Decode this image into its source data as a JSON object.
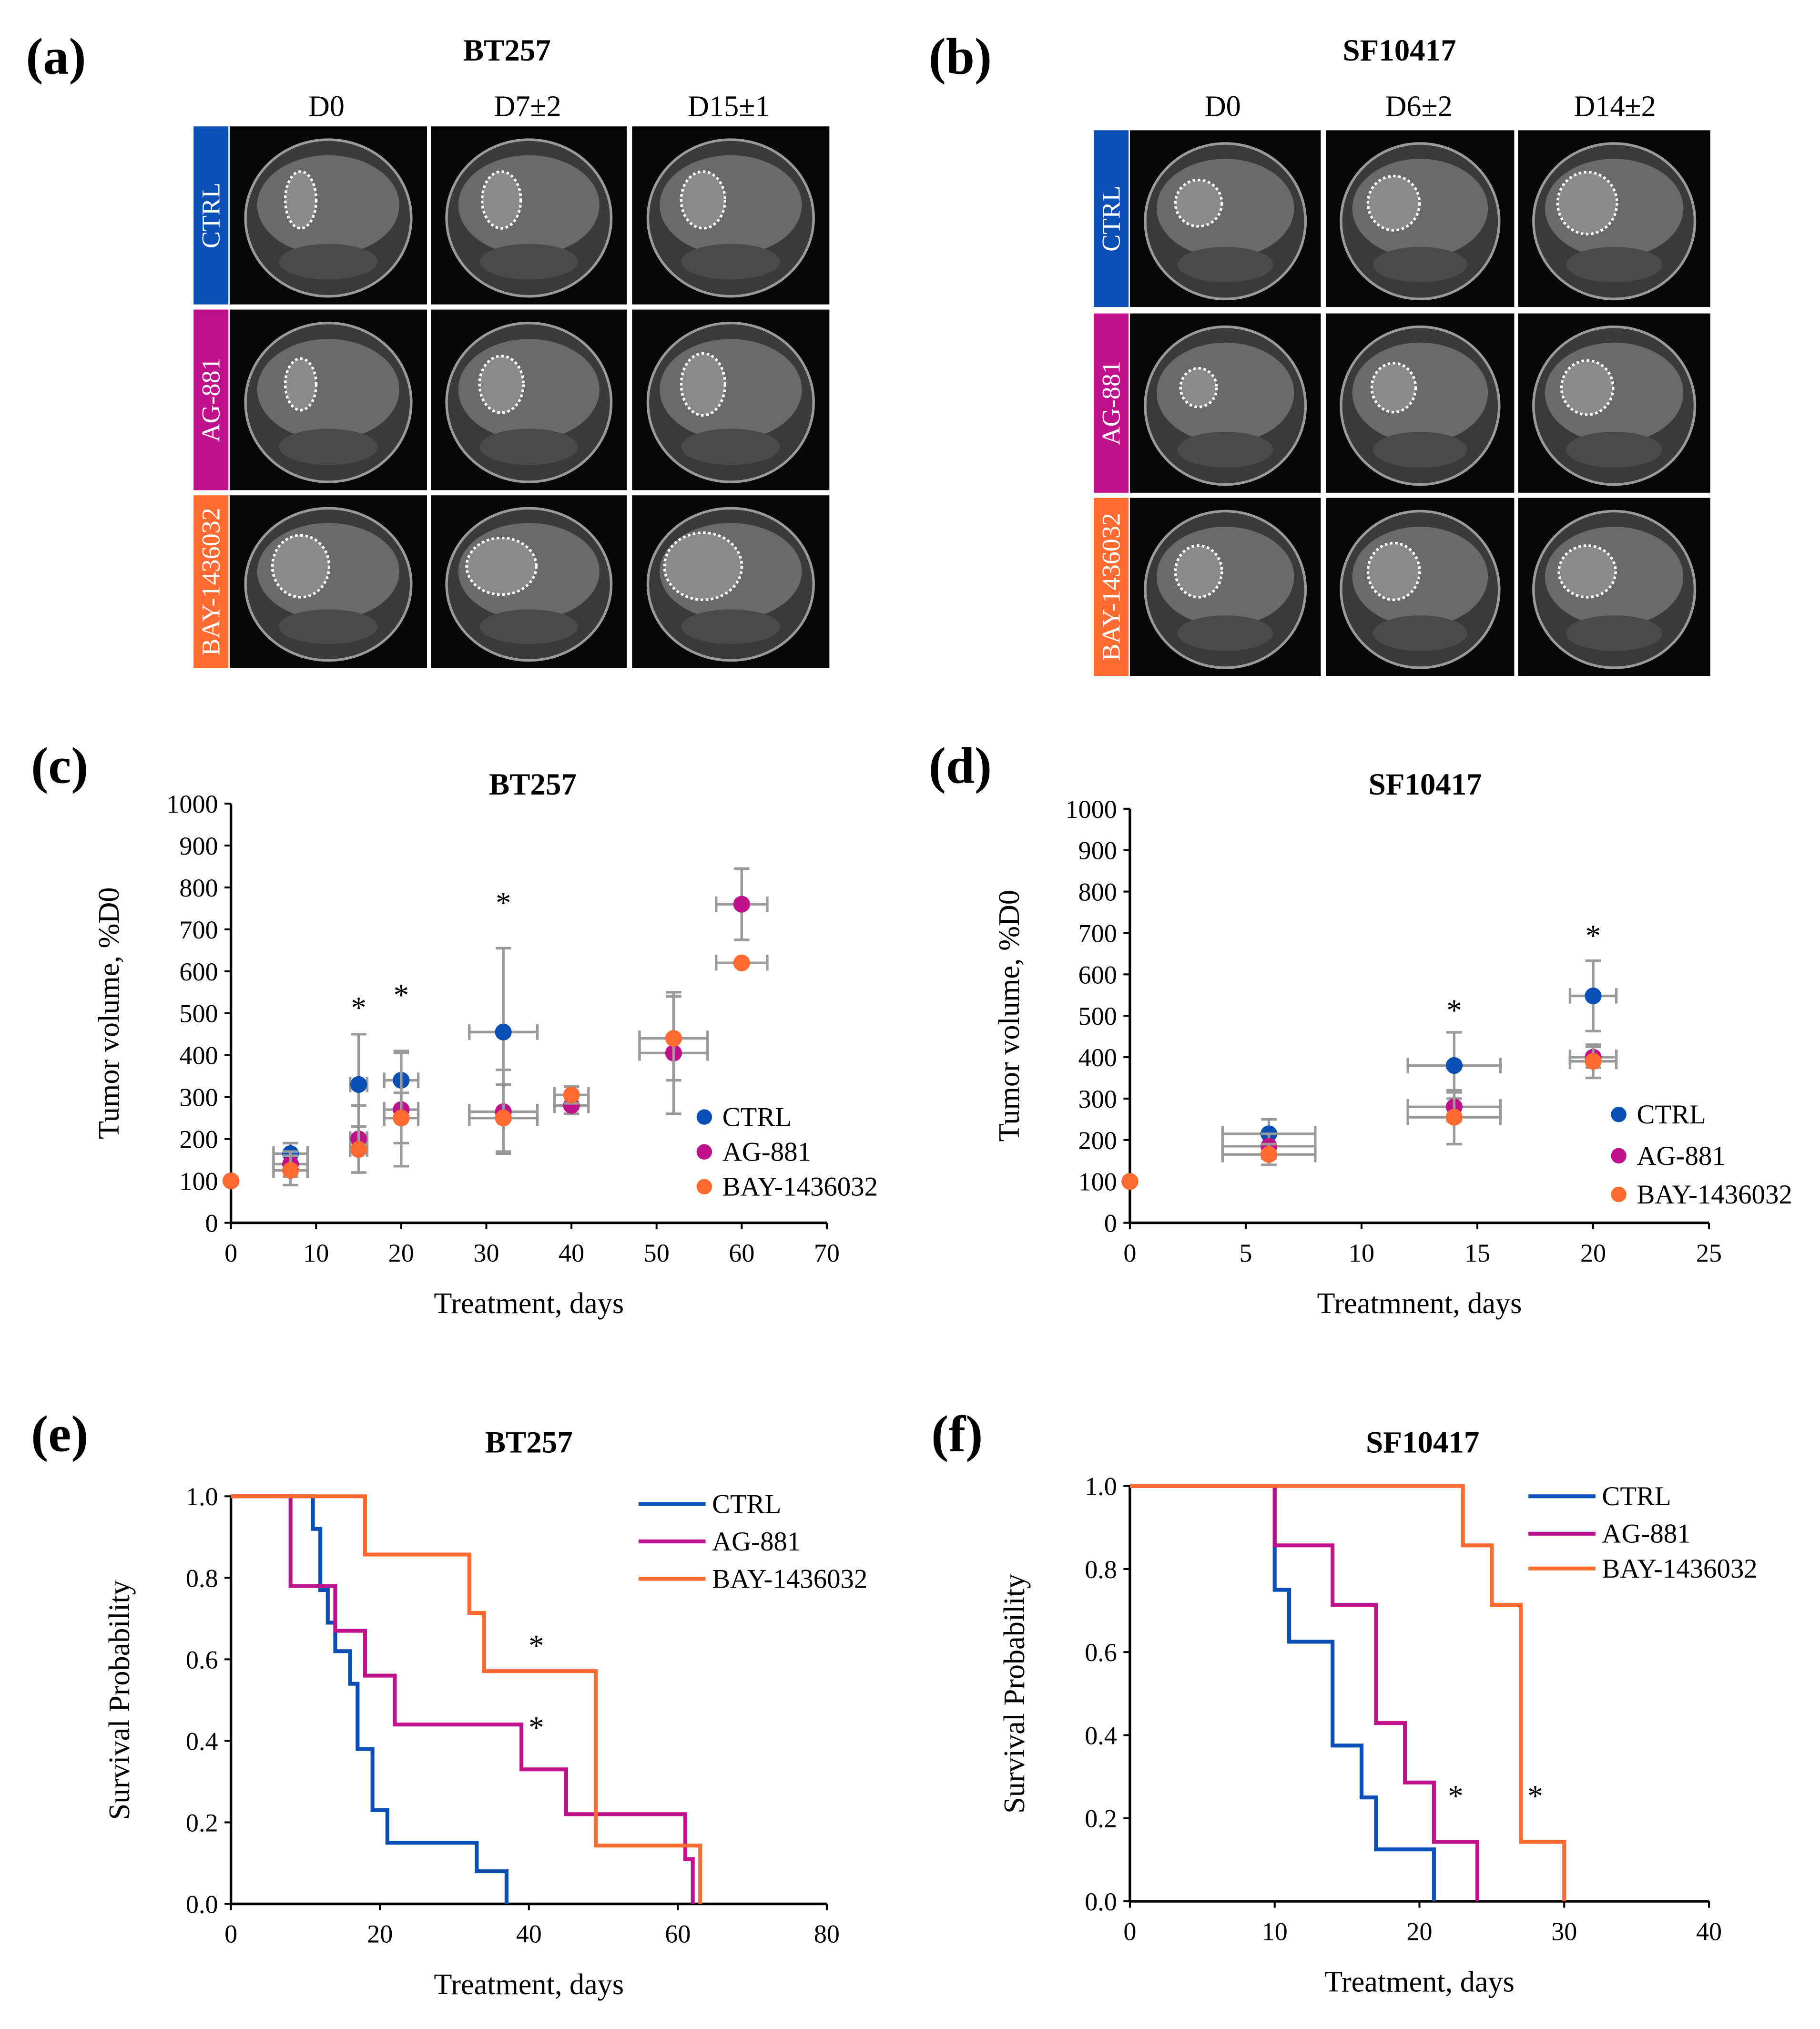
{
  "panels": {
    "a": {
      "label": "(a)",
      "title": "BT257",
      "cols": [
        "D0",
        "D7±2",
        "D15±1"
      ],
      "rows": [
        "CTRL",
        "AG-881",
        "BAY-1436032"
      ]
    },
    "b": {
      "label": "(b)",
      "title": "SF10417",
      "cols": [
        "D0",
        "D6±2",
        "D14±2"
      ],
      "rows": [
        "CTRL",
        "AG-881",
        "BAY-1436032"
      ]
    },
    "c": {
      "label": "(c)"
    },
    "d": {
      "label": "(d)"
    },
    "e": {
      "label": "(e)"
    },
    "f": {
      "label": "(f)"
    }
  },
  "colors": {
    "CTRL": "#0a4fb5",
    "AG-881": "#c0118c",
    "BAY-1436032": "#ff6a30",
    "error": "#9a9a9a"
  },
  "chart_data": [
    {
      "id": "c",
      "type": "scatter",
      "title": "BT257",
      "xlabel": "Treatment, days",
      "ylabel": "Tumor volume, %D0",
      "xlim": [
        0,
        70
      ],
      "ylim": [
        0,
        1000
      ],
      "xticks": [
        0,
        10,
        20,
        30,
        40,
        50,
        60,
        70
      ],
      "yticks": [
        0,
        100,
        200,
        300,
        400,
        500,
        600,
        700,
        800,
        900,
        1000
      ],
      "legend": "right",
      "series": [
        {
          "name": "CTRL",
          "points": [
            [
              0,
              100,
              0,
              0
            ],
            [
              7,
              165,
              2,
              25
            ],
            [
              15,
              330,
              1,
              120
            ],
            [
              20,
              340,
              2,
              70
            ],
            [
              32,
              455,
              4,
              200
            ]
          ]
        },
        {
          "name": "AG-881",
          "points": [
            [
              0,
              100,
              0,
              0
            ],
            [
              7,
              140,
              2,
              30
            ],
            [
              15,
              200,
              1,
              80
            ],
            [
              20,
              270,
              2,
              135
            ],
            [
              32,
              265,
              4,
              100
            ],
            [
              40,
              280,
              2,
              20
            ],
            [
              52,
              405,
              4,
              145
            ],
            [
              60,
              760,
              3,
              85
            ]
          ]
        },
        {
          "name": "BAY-1436032",
          "points": [
            [
              0,
              100,
              0,
              0
            ],
            [
              7,
              125,
              2,
              35
            ],
            [
              15,
              175,
              1,
              55
            ],
            [
              20,
              250,
              2,
              60
            ],
            [
              32,
              250,
              4,
              80
            ],
            [
              40,
              305,
              2,
              20
            ],
            [
              52,
              440,
              4,
              100
            ],
            [
              60,
              620,
              3,
              0
            ]
          ]
        }
      ],
      "annotations": [
        {
          "text": "*",
          "x": 15,
          "y": 520
        },
        {
          "text": "*",
          "x": 20,
          "y": 550
        },
        {
          "text": "*",
          "x": 32,
          "y": 770
        }
      ]
    },
    {
      "id": "d",
      "type": "scatter",
      "title": "SF10417",
      "xlabel": "Treatmnent, days",
      "ylabel": "Tumor volume, %D0",
      "xlim": [
        0,
        25
      ],
      "ylim": [
        0,
        1000
      ],
      "xticks": [
        0,
        5,
        10,
        15,
        20,
        25
      ],
      "yticks": [
        0,
        100,
        200,
        300,
        400,
        500,
        600,
        700,
        800,
        900,
        1000
      ],
      "legend": "right",
      "series": [
        {
          "name": "CTRL",
          "points": [
            [
              0,
              100,
              0,
              0
            ],
            [
              6,
              215,
              2,
              35
            ],
            [
              14,
              380,
              2,
              80
            ],
            [
              20,
              548,
              1,
              85
            ]
          ]
        },
        {
          "name": "AG-881",
          "points": [
            [
              0,
              100,
              0,
              0
            ],
            [
              6,
              185,
              2,
              30
            ],
            [
              14,
              280,
              2,
              35
            ],
            [
              20,
              400,
              1,
              25
            ]
          ]
        },
        {
          "name": "BAY-1436032",
          "points": [
            [
              0,
              100,
              0,
              0
            ],
            [
              6,
              165,
              2,
              25
            ],
            [
              14,
              255,
              2,
              65
            ],
            [
              20,
              390,
              1,
              40
            ]
          ]
        }
      ],
      "annotations": [
        {
          "text": "*",
          "x": 14,
          "y": 520
        },
        {
          "text": "*",
          "x": 20,
          "y": 700
        }
      ]
    },
    {
      "id": "e",
      "type": "line",
      "step": true,
      "title": "BT257",
      "xlabel": "Treatment, days",
      "ylabel": "Survival Probability",
      "xlim": [
        0,
        80
      ],
      "ylim": [
        0,
        1
      ],
      "xticks": [
        0,
        20,
        40,
        60,
        80
      ],
      "yticks": [
        0,
        0.2,
        0.4,
        0.6,
        0.8,
        1.0
      ],
      "legend": "top-right",
      "series": [
        {
          "name": "CTRL",
          "steps": [
            [
              0,
              1
            ],
            [
              11,
              0.92
            ],
            [
              12,
              0.77
            ],
            [
              13,
              0.69
            ],
            [
              14,
              0.62
            ],
            [
              16,
              0.54
            ],
            [
              17,
              0.38
            ],
            [
              19,
              0.23
            ],
            [
              21,
              0.15
            ],
            [
              33,
              0.08
            ],
            [
              37,
              0
            ]
          ]
        },
        {
          "name": "AG-881",
          "steps": [
            [
              0,
              1
            ],
            [
              8,
              0.78
            ],
            [
              14,
              0.67
            ],
            [
              18,
              0.56
            ],
            [
              22,
              0.44
            ],
            [
              39,
              0.33
            ],
            [
              45,
              0.22
            ],
            [
              61,
              0.11
            ],
            [
              62,
              0
            ]
          ]
        },
        {
          "name": "BAY-1436032",
          "steps": [
            [
              0,
              1
            ],
            [
              18,
              0.857
            ],
            [
              32,
              0.714
            ],
            [
              34,
              0.571
            ],
            [
              49,
              0.143
            ],
            [
              63,
              0
            ]
          ]
        }
      ],
      "annotations": [
        {
          "text": "*",
          "x": 41,
          "y": 0.64
        },
        {
          "text": "*",
          "x": 41,
          "y": 0.44
        }
      ]
    },
    {
      "id": "f",
      "type": "line",
      "step": true,
      "title": "SF10417",
      "xlabel": "Treatment, days",
      "ylabel": "Survival Probability",
      "xlim": [
        0,
        40
      ],
      "ylim": [
        0,
        1
      ],
      "xticks": [
        0,
        10,
        20,
        30,
        40
      ],
      "yticks": [
        0,
        0.2,
        0.4,
        0.6,
        0.8,
        1.0
      ],
      "legend": "top-right",
      "series": [
        {
          "name": "CTRL",
          "steps": [
            [
              0,
              1
            ],
            [
              10,
              0.75
            ],
            [
              11,
              0.625
            ],
            [
              14,
              0.375
            ],
            [
              16,
              0.25
            ],
            [
              17,
              0.125
            ],
            [
              21,
              0
            ]
          ]
        },
        {
          "name": "AG-881",
          "steps": [
            [
              0,
              1
            ],
            [
              10,
              0.857
            ],
            [
              14,
              0.714
            ],
            [
              17,
              0.429
            ],
            [
              19,
              0.286
            ],
            [
              21,
              0.143
            ],
            [
              24,
              0
            ]
          ]
        },
        {
          "name": "BAY-1436032",
          "steps": [
            [
              0,
              1
            ],
            [
              23,
              0.857
            ],
            [
              25,
              0.714
            ],
            [
              27,
              0.143
            ],
            [
              30,
              0
            ]
          ]
        }
      ],
      "annotations": [
        {
          "text": "*",
          "x": 22.5,
          "y": 0.26
        },
        {
          "text": "*",
          "x": 28,
          "y": 0.26
        }
      ]
    }
  ]
}
